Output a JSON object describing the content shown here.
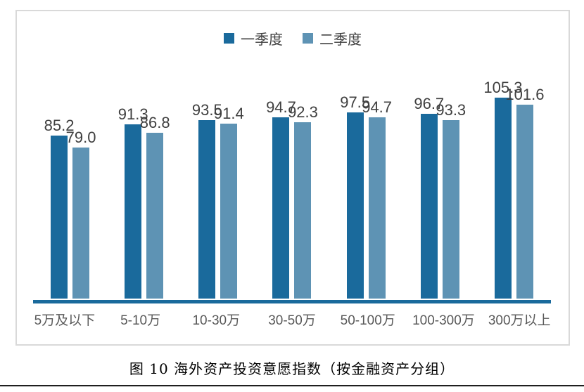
{
  "caption": "图 10 海外资产投资意愿指数（按金融资产分组）",
  "colors": {
    "series1": "#1A6A9C",
    "series2": "#5E93B4",
    "axis_line": "#1A6A9C",
    "value_label": "#3F3F3F",
    "category_label": "#595959",
    "frame_border": "#D9D9D9",
    "bottom_rule": "#1F1F1F"
  },
  "chart_data": {
    "type": "bar",
    "title": "",
    "xlabel": "",
    "ylabel": "",
    "grid": false,
    "legend_position": "top-center",
    "value_labels_shown": true,
    "ylim": [
      0,
      110
    ],
    "categories": [
      "5万及以下",
      "5-10万",
      "10-30万",
      "30-50万",
      "50-100万",
      "100-300万",
      "300万以上"
    ],
    "series": [
      {
        "name": "一季度",
        "color": "#1A6A9C",
        "values": [
          85.2,
          91.3,
          93.5,
          94.7,
          97.5,
          96.7,
          105.3
        ]
      },
      {
        "name": "二季度",
        "color": "#5E93B4",
        "values": [
          79.0,
          86.8,
          91.4,
          92.3,
          94.7,
          93.3,
          101.6
        ]
      }
    ]
  }
}
